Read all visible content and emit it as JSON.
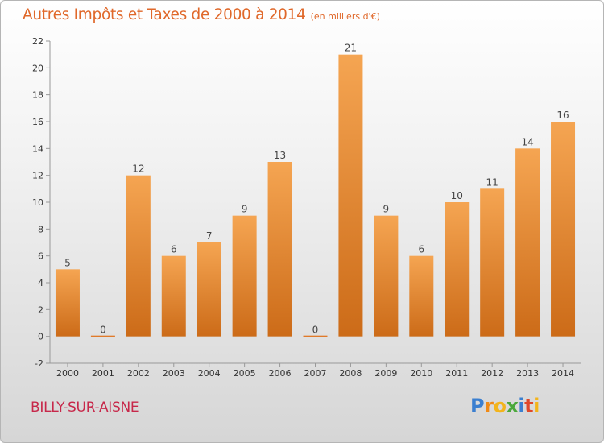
{
  "header": {
    "title": "Autres Impôts et Taxes de 2000 à 2014",
    "subtitle": "(en milliers d'€)"
  },
  "footer": {
    "town": "BILLY-SUR-AISNE",
    "logo_letters": [
      "P",
      "r",
      "o",
      "x",
      "i",
      "t",
      "i"
    ]
  },
  "chart_data": {
    "type": "bar",
    "title": "Autres Impôts et Taxes de 2000 à 2014",
    "subtitle": "(en milliers d'€)",
    "categories": [
      "2000",
      "2001",
      "2002",
      "2003",
      "2004",
      "2005",
      "2006",
      "2007",
      "2008",
      "2009",
      "2010",
      "2011",
      "2012",
      "2013",
      "2014"
    ],
    "values": [
      5,
      0,
      12,
      6,
      7,
      9,
      13,
      0,
      21,
      9,
      6,
      10,
      11,
      14,
      16
    ],
    "data_labels": [
      "5",
      "0",
      "12",
      "6",
      "7",
      "9",
      "13",
      "0",
      "21",
      "9",
      "6",
      "10",
      "11",
      "14",
      "16"
    ],
    "ylim": [
      -2,
      22
    ],
    "yticks": [
      -2,
      0,
      2,
      4,
      6,
      8,
      10,
      12,
      14,
      16,
      18,
      20,
      22
    ],
    "xlabel": "",
    "ylabel": "",
    "grid": false,
    "legend": "none",
    "bar_color_top": "#f5a552",
    "bar_color_bottom": "#cc6b18"
  }
}
